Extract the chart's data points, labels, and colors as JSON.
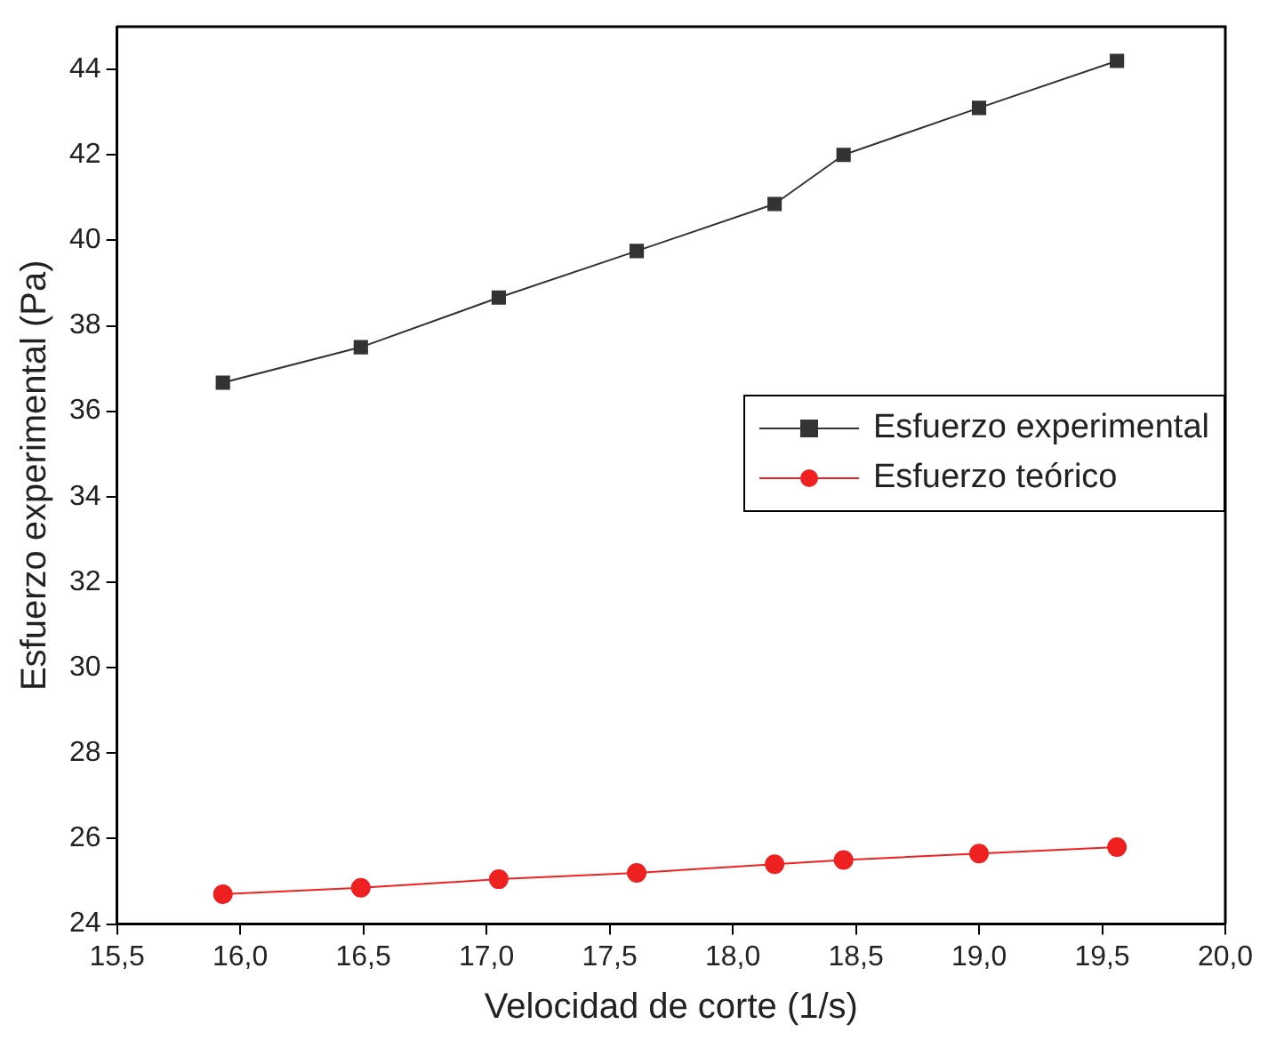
{
  "chart_data": {
    "type": "line",
    "xlabel": "Velocidad de corte (1/s)",
    "ylabel": "Esfuerzo experimental (Pa)",
    "x": [
      15.93,
      16.49,
      17.05,
      17.61,
      18.17,
      18.45,
      19.0,
      19.56
    ],
    "series": [
      {
        "name": "Esfuerzo experimental",
        "color": "#333333",
        "marker": "square",
        "values": [
          36.67,
          37.5,
          38.66,
          39.75,
          40.85,
          42.0,
          43.1,
          44.2
        ]
      },
      {
        "name": "Esfuerzo teórico",
        "color": "#ee2020",
        "marker": "circle",
        "values": [
          24.7,
          24.85,
          25.05,
          25.2,
          25.4,
          25.5,
          25.65,
          25.8
        ]
      }
    ],
    "xlim": [
      15.5,
      20.0
    ],
    "xticks": [
      {
        "value": 15.5,
        "label": "15,5"
      },
      {
        "value": 16.0,
        "label": "16,0"
      },
      {
        "value": 16.5,
        "label": "16,5"
      },
      {
        "value": 17.0,
        "label": "17,0"
      },
      {
        "value": 17.5,
        "label": "17,5"
      },
      {
        "value": 18.0,
        "label": "18,0"
      },
      {
        "value": 18.5,
        "label": "18,5"
      },
      {
        "value": 19.0,
        "label": "19,0"
      },
      {
        "value": 19.5,
        "label": "19,5"
      },
      {
        "value": 20.0,
        "label": "20,0"
      }
    ],
    "ylim": [
      24,
      45
    ],
    "yticks": [
      24,
      26,
      28,
      30,
      32,
      34,
      36,
      38,
      40,
      42,
      44
    ],
    "grid": false,
    "legend": "right",
    "line_style": "solid"
  }
}
